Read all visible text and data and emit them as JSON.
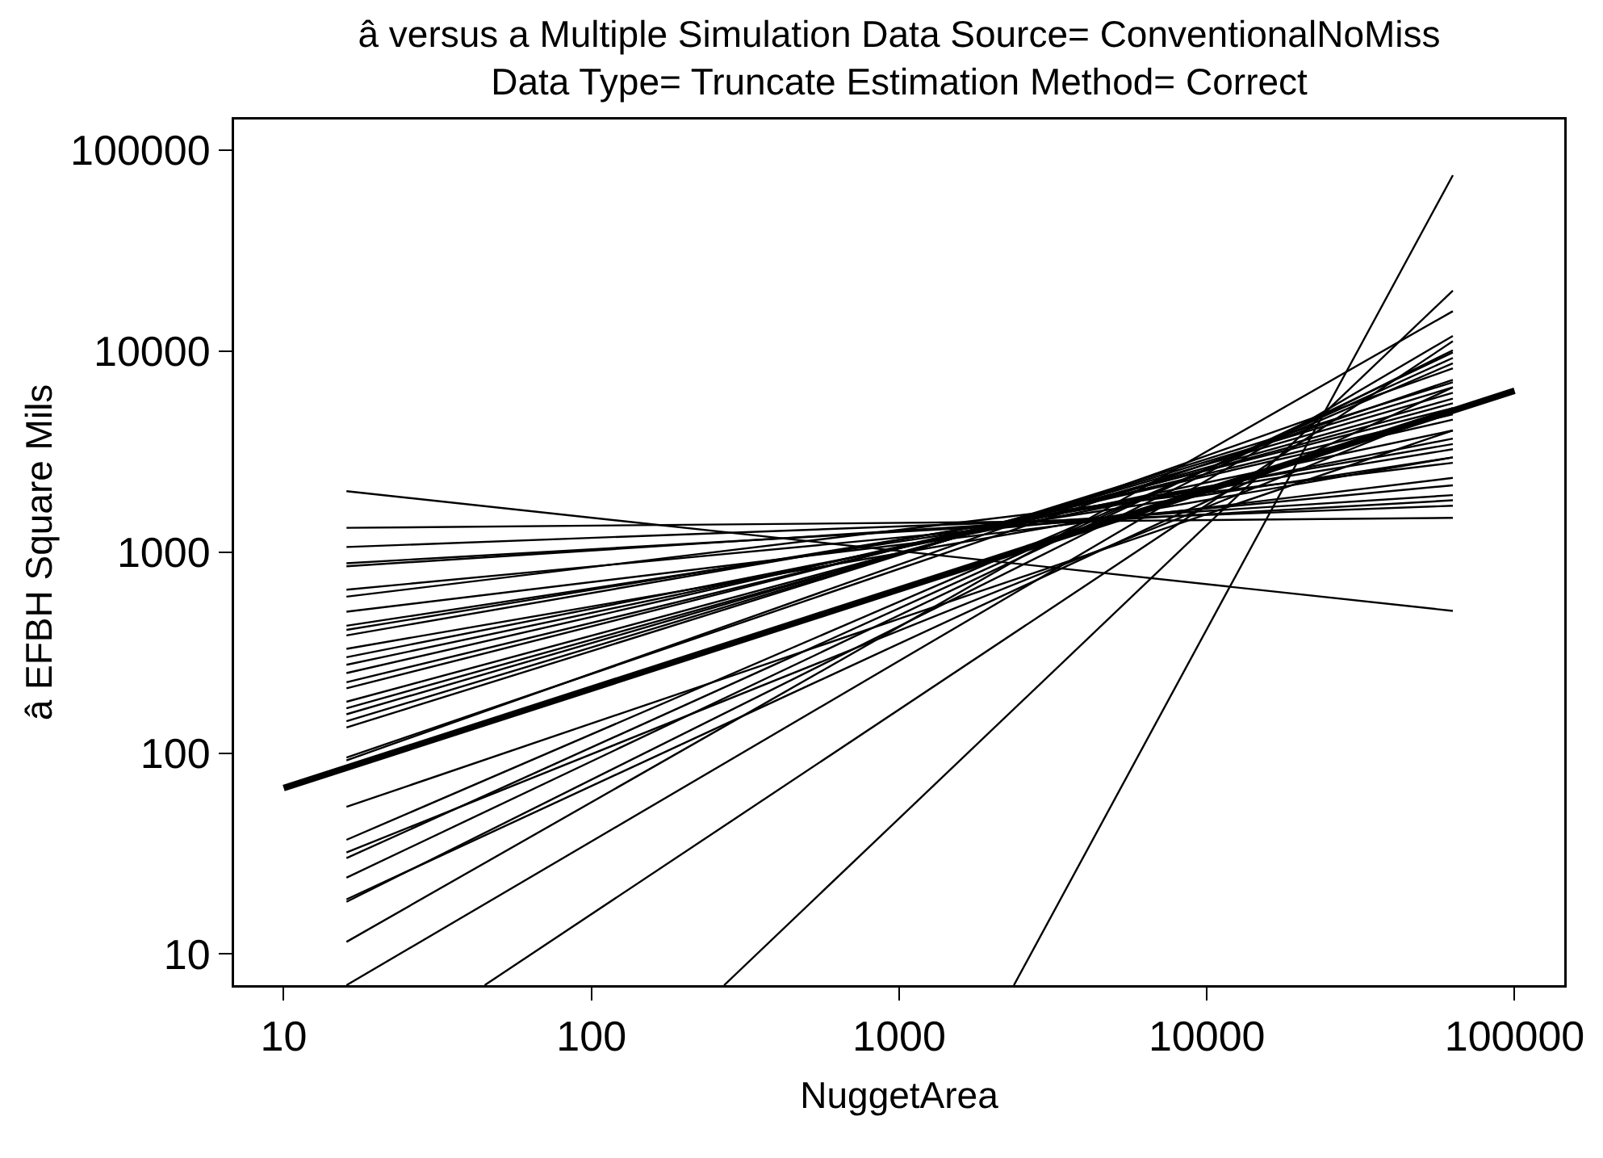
{
  "chart_data": {
    "type": "line",
    "title": "â versus a Multiple Simulation Data Source= ConventionalNoMiss\nData Type= Truncate Estimation Method= Correct",
    "xlabel": "NuggetArea",
    "ylabel": "â EFBH Square Mils",
    "log": "xy",
    "xlim": [
      6.9,
      145000
    ],
    "ylim": [
      7,
      142000
    ],
    "xticks": [
      10,
      100,
      1000,
      10000,
      100000
    ],
    "yticks": [
      10,
      100,
      1000,
      10000,
      100000
    ],
    "grid": false,
    "marker": "none",
    "line_style": "solid",
    "series": [
      {
        "color": "#000000",
        "x": [
          16,
          63000
        ],
        "values": [
          2010,
          510
        ]
      },
      {
        "color": "#000000",
        "x": [
          16,
          63000
        ],
        "values": [
          1320,
          1480
        ]
      },
      {
        "color": "#000000",
        "x": [
          16,
          63000
        ],
        "values": [
          1060,
          1700
        ]
      },
      {
        "color": "#000000",
        "x": [
          16,
          63000
        ],
        "values": [
          880,
          1810
        ]
      },
      {
        "color": "#000000",
        "x": [
          16,
          63000
        ],
        "values": [
          850,
          1920
        ]
      },
      {
        "color": "#000000",
        "x": [
          16,
          63000
        ],
        "values": [
          650,
          2150
        ]
      },
      {
        "color": "#000000",
        "x": [
          16,
          63000
        ],
        "values": [
          600,
          2780
        ]
      },
      {
        "color": "#000000",
        "x": [
          16,
          63000
        ],
        "values": [
          505,
          2340
        ]
      },
      {
        "color": "#000000",
        "x": [
          16,
          63000
        ],
        "values": [
          430,
          2960
        ]
      },
      {
        "color": "#000000",
        "x": [
          16,
          63000
        ],
        "values": [
          410,
          3250
        ]
      },
      {
        "color": "#000000",
        "x": [
          16,
          63000
        ],
        "values": [
          385,
          3450
        ]
      },
      {
        "color": "#000000",
        "x": [
          16,
          63000
        ],
        "values": [
          330,
          2960
        ]
      },
      {
        "color": "#000000",
        "x": [
          16,
          63000
        ],
        "values": [
          300,
          3670
        ]
      },
      {
        "color": "#000000",
        "x": [
          16,
          63000
        ],
        "values": [
          275,
          4030
        ]
      },
      {
        "color": "#000000",
        "x": [
          16,
          63000
        ],
        "values": [
          250,
          4560
        ]
      },
      {
        "color": "#000000",
        "x": [
          16,
          63000
        ],
        "values": [
          225,
          4850
        ]
      },
      {
        "color": "#000000",
        "x": [
          16,
          63000
        ],
        "values": [
          210,
          5200
        ]
      },
      {
        "color": "#000000",
        "x": [
          16,
          63000
        ],
        "values": [
          180,
          5500
        ]
      },
      {
        "color": "#000000",
        "x": [
          16,
          63000
        ],
        "values": [
          167,
          5800
        ]
      },
      {
        "color": "#000000",
        "x": [
          16,
          63000
        ],
        "values": [
          156,
          6200
        ]
      },
      {
        "color": "#000000",
        "x": [
          16,
          63000
        ],
        "values": [
          144,
          6600
        ]
      },
      {
        "color": "#000000",
        "x": [
          16,
          63000
        ],
        "values": [
          134,
          7000
        ]
      },
      {
        "color": "#000000",
        "x": [
          16,
          63000
        ],
        "values": [
          95,
          7200
        ]
      },
      {
        "color": "#000000",
        "x": [
          16,
          63000
        ],
        "values": [
          92,
          8200
        ]
      },
      {
        "color": "#000000",
        "x": [
          16,
          63000
        ],
        "values": [
          54,
          4030
        ]
      },
      {
        "color": "#000000",
        "x": [
          16,
          63000
        ],
        "values": [
          37,
          8700
        ]
      },
      {
        "color": "#000000",
        "x": [
          16,
          63000
        ],
        "values": [
          32,
          5200
        ]
      },
      {
        "color": "#000000",
        "x": [
          16,
          63000
        ],
        "values": [
          30,
          9250
        ]
      },
      {
        "color": "#000000",
        "x": [
          16,
          63000
        ],
        "values": [
          24,
          9850
        ]
      },
      {
        "color": "#000000",
        "x": [
          16,
          63000
        ],
        "values": [
          18.7,
          6600
        ]
      },
      {
        "color": "#000000",
        "x": [
          16,
          63000
        ],
        "values": [
          18.2,
          10100
        ]
      },
      {
        "color": "#000000",
        "x": [
          16,
          63000
        ],
        "values": [
          11.5,
          15800
        ]
      },
      {
        "color": "#000000",
        "x": [
          16,
          63000
        ],
        "values": [
          7,
          11900
        ]
      },
      {
        "color": "#000000",
        "x": [
          45,
          63000
        ],
        "values": [
          7,
          11200
        ]
      },
      {
        "color": "#000000",
        "x": [
          270,
          63000
        ],
        "values": [
          7,
          20000
        ]
      },
      {
        "color": "#000000",
        "x": [
          2360,
          63000
        ],
        "values": [
          7,
          75000
        ]
      },
      {
        "color": "#000000",
        "x": [
          10,
          100000
        ],
        "values": [
          67,
          6350
        ]
      }
    ]
  }
}
